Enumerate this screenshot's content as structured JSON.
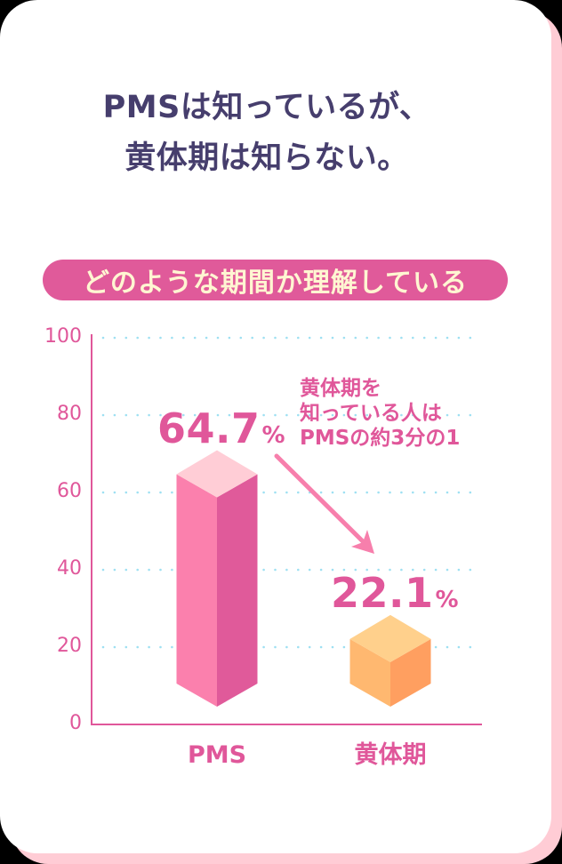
{
  "title": {
    "line1": "PMSは知っているが、",
    "line2": "黄体期は知らない。"
  },
  "pill_label": "どのような期間か理解している",
  "annotation": {
    "lines": [
      "黄体期を",
      "知っている人は",
      "PMSの約3分の1"
    ]
  },
  "colors": {
    "title_text": "#463e6d",
    "accent_pink": "#e0579a",
    "pill_background": "#e05a9a",
    "pill_text": "#fff6d2",
    "grid_dots": "#9ee0f2",
    "arrow": "#f77fac",
    "card_shadow": "#ffccd5",
    "pms_bar": {
      "top": "#ffcdd6",
      "left": "#fb80ad",
      "right": "#e05a9a"
    },
    "luteal_bar": {
      "top": "#ffd08c",
      "left": "#ffb870",
      "right": "#ff9f60"
    }
  },
  "chart_data": {
    "type": "bar",
    "title": "どのような期間か理解している",
    "categories": [
      "PMS",
      "黄体期"
    ],
    "values": [
      64.7,
      22.1
    ],
    "value_labels": [
      {
        "number": "64.7",
        "unit": "%"
      },
      {
        "number": "22.1",
        "unit": "%"
      }
    ],
    "xlabel": "",
    "ylabel": "",
    "ylim": [
      0,
      100
    ],
    "yticks": [
      0,
      20,
      40,
      60,
      80,
      100
    ],
    "ytick_labels": [
      "0",
      "20",
      "40",
      "60",
      "80",
      "100"
    ],
    "grid": true,
    "legend": null,
    "annotations": [
      {
        "text": "黄体期を知っている人はPMSの約3分の1",
        "arrow_from": "PMS",
        "arrow_to": "黄体期"
      }
    ]
  }
}
